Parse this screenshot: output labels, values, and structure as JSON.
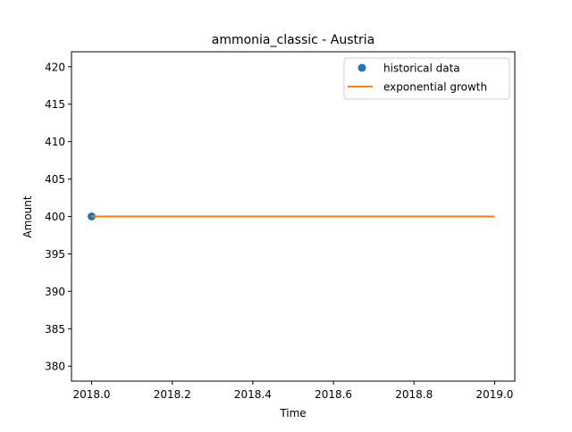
{
  "chart_data": {
    "type": "line",
    "title": "ammonia_classic - Austria",
    "xlabel": "Time",
    "ylabel": "Amount",
    "xlim": [
      2017.95,
      2019.05
    ],
    "ylim": [
      378,
      422
    ],
    "x_ticks": [
      2018.0,
      2018.2,
      2018.4,
      2018.6,
      2018.8,
      2019.0
    ],
    "x_tick_labels": [
      "2018.0",
      "2018.2",
      "2018.4",
      "2018.6",
      "2018.8",
      "2019.0"
    ],
    "y_ticks": [
      380,
      385,
      390,
      395,
      400,
      405,
      410,
      415,
      420
    ],
    "y_tick_labels": [
      "380",
      "385",
      "390",
      "395",
      "400",
      "405",
      "410",
      "415",
      "420"
    ],
    "grid": false,
    "legend_position": "top-right",
    "series": [
      {
        "name": "historical data",
        "kind": "scatter",
        "color": "#1f77b4",
        "x": [
          2018.0
        ],
        "y": [
          400
        ]
      },
      {
        "name": "exponential growth",
        "kind": "line",
        "color": "#ff7f0e",
        "x": [
          2018.0,
          2019.0
        ],
        "y": [
          400,
          400
        ]
      }
    ]
  }
}
